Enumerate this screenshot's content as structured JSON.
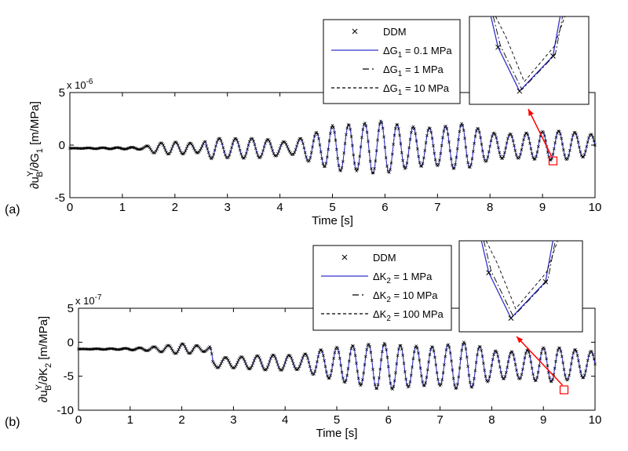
{
  "chart_data": [
    {
      "type": "line",
      "panel_label": "(a)",
      "xlabel": "Time [s]",
      "ylabel": "∂u_B^Y/∂G_1 [m/MPa]",
      "ylabel_parts": {
        "pre": "∂u",
        "sup": "Y",
        "sub": "B",
        "mid": "/∂G",
        "sub2": "1",
        "post": " [m/MPa]"
      },
      "y_multiplier": {
        "base": "x 10",
        "exp": "-6"
      },
      "xlim": [
        0,
        10
      ],
      "ylim": [
        -5,
        5
      ],
      "xticks": [
        "0",
        "1",
        "2",
        "3",
        "4",
        "5",
        "6",
        "7",
        "8",
        "9",
        "10"
      ],
      "yticks": [
        "-5",
        "0",
        "5"
      ],
      "legend": {
        "placement": "top-right",
        "entries": [
          {
            "marker": "×",
            "label": "DDM",
            "style": "marker",
            "color": "#000000"
          },
          {
            "label": "ΔG₁ = 0.1 MPa",
            "parts": [
              "ΔG",
              "1",
              " = 0.1 MPa"
            ],
            "style": "solid",
            "color": "#3333cc"
          },
          {
            "label": "ΔG₁ = 1 MPa",
            "parts": [
              "ΔG",
              "1",
              " = 1 MPa"
            ],
            "style": "dashdot",
            "color": "#000000"
          },
          {
            "label": "ΔG₁ = 10 MPa",
            "parts": [
              "ΔG",
              "1",
              " = 10 MPa"
            ],
            "style": "dashed",
            "color": "#000000"
          }
        ]
      },
      "inset": {
        "zoom_time": 9.2,
        "zoom_value": -1.5
      },
      "envelope": [
        {
          "t": 0.0,
          "amp": 0.0
        },
        {
          "t": 0.8,
          "amp": 0.08
        },
        {
          "t": 1.4,
          "amp": 0.15
        },
        {
          "t": 1.6,
          "amp": 0.5
        },
        {
          "t": 2.0,
          "amp": 0.6
        },
        {
          "t": 2.5,
          "amp": 0.5
        },
        {
          "t": 2.7,
          "amp": 1.3
        },
        {
          "t": 3.3,
          "amp": 1.1
        },
        {
          "t": 4.2,
          "amp": 0.6
        },
        {
          "t": 4.6,
          "amp": 1.8
        },
        {
          "t": 5.0,
          "amp": 2.6
        },
        {
          "t": 5.5,
          "amp": 2.2
        },
        {
          "t": 6.0,
          "amp": 2.8
        },
        {
          "t": 6.5,
          "amp": 2.6
        },
        {
          "t": 7.0,
          "amp": 2.0
        },
        {
          "t": 7.5,
          "amp": 2.2
        },
        {
          "t": 8.0,
          "amp": 1.6
        },
        {
          "t": 8.5,
          "amp": 1.5
        },
        {
          "t": 9.0,
          "amp": 1.4
        },
        {
          "t": 9.5,
          "amp": 1.4
        },
        {
          "t": 10.0,
          "amp": 1.3
        }
      ],
      "offset": [
        {
          "t": 0.0,
          "v": -0.3
        },
        {
          "t": 2.5,
          "v": -0.3
        },
        {
          "t": 4.5,
          "v": -0.3
        },
        {
          "t": 10.0,
          "v": 0.0
        }
      ],
      "grid": false
    },
    {
      "type": "line",
      "panel_label": "(b)",
      "xlabel": "Time [s]",
      "ylabel": "∂u_B^Y/∂K_2 [m/MPa]",
      "ylabel_parts": {
        "pre": "∂u",
        "sup": "Y",
        "sub": "B",
        "mid": "/∂K",
        "sub2": "2",
        "post": " [m/MPa]"
      },
      "y_multiplier": {
        "base": "x 10",
        "exp": "-7"
      },
      "xlim": [
        0,
        10
      ],
      "ylim": [
        -10,
        5
      ],
      "xticks": [
        "0",
        "1",
        "2",
        "3",
        "4",
        "5",
        "6",
        "7",
        "8",
        "9",
        "10"
      ],
      "yticks": [
        "-10",
        "-5",
        "0",
        "5"
      ],
      "legend": {
        "placement": "top-right",
        "entries": [
          {
            "marker": "×",
            "label": "DDM",
            "style": "marker",
            "color": "#000000"
          },
          {
            "label": "ΔK₂ = 1 MPa",
            "parts": [
              "ΔK",
              "2",
              " = 1 MPa"
            ],
            "style": "solid",
            "color": "#3333cc"
          },
          {
            "label": "ΔK₂ = 10 MPa",
            "parts": [
              "ΔK",
              "2",
              " = 10 MPa"
            ],
            "style": "dashdot",
            "color": "#000000"
          },
          {
            "label": "ΔK₂ = 100 MPa",
            "parts": [
              "ΔK",
              "2",
              " = 100 MPa"
            ],
            "style": "dashed",
            "color": "#000000"
          }
        ]
      },
      "inset": {
        "zoom_time": 9.4,
        "zoom_value": -7.0
      },
      "envelope": [
        {
          "t": 0.0,
          "amp": 0.0
        },
        {
          "t": 0.8,
          "amp": 0.1
        },
        {
          "t": 1.3,
          "amp": 0.3
        },
        {
          "t": 1.8,
          "amp": 0.6
        },
        {
          "t": 2.0,
          "amp": 0.8
        },
        {
          "t": 2.5,
          "amp": 0.4
        },
        {
          "t": 2.7,
          "amp": 1.0
        },
        {
          "t": 3.5,
          "amp": 1.1
        },
        {
          "t": 4.3,
          "amp": 1.2
        },
        {
          "t": 4.6,
          "amp": 2.5
        },
        {
          "t": 5.0,
          "amp": 3.0
        },
        {
          "t": 5.5,
          "amp": 3.0
        },
        {
          "t": 6.0,
          "amp": 3.8
        },
        {
          "t": 6.5,
          "amp": 4.0
        },
        {
          "t": 7.0,
          "amp": 3.2
        },
        {
          "t": 7.5,
          "amp": 3.5
        },
        {
          "t": 8.0,
          "amp": 2.7
        },
        {
          "t": 8.5,
          "amp": 2.6
        },
        {
          "t": 9.0,
          "amp": 2.6
        },
        {
          "t": 9.5,
          "amp": 2.4
        },
        {
          "t": 10.0,
          "amp": 2.4
        }
      ],
      "offset": [
        {
          "t": 0.0,
          "v": -1.0
        },
        {
          "t": 2.55,
          "v": -1.0
        },
        {
          "t": 2.6,
          "v": -3.0
        },
        {
          "t": 4.5,
          "v": -3.0
        },
        {
          "t": 6.0,
          "v": -3.6
        },
        {
          "t": 10.0,
          "v": -3.2
        }
      ],
      "grid": false
    }
  ],
  "colors": {
    "blue_series": "#3333cc",
    "ddm_marker": "#000000",
    "inset_box": "#ff0000",
    "arrow": "#ff0000"
  }
}
